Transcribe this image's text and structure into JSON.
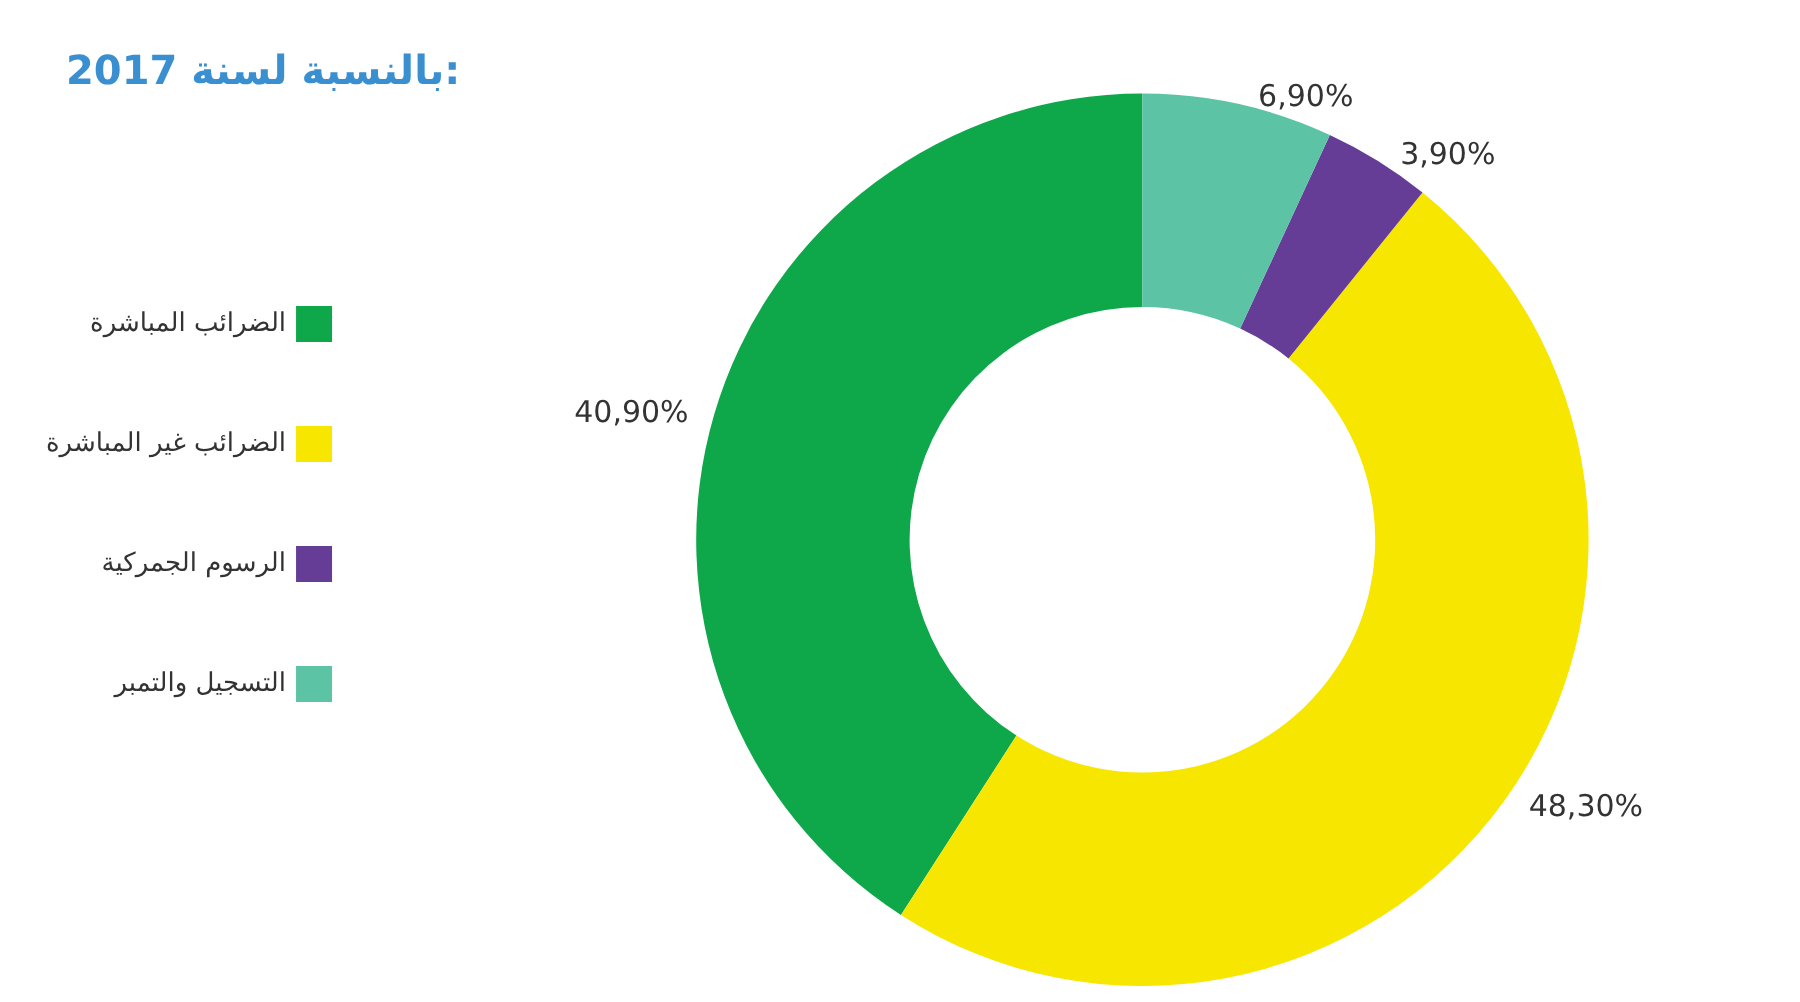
{
  "chart_data": {
    "type": "donut",
    "title": "بالنسبة لسنة 2017:",
    "categories": [
      "الضرائب المباشرة",
      "الضرائب غير المباشرة",
      "الرسوم الجمركية",
      "التسجيل والتمبر"
    ],
    "values": [
      40.9,
      48.3,
      3.9,
      6.9
    ],
    "colors": [
      "#0ea84b",
      "#f7e600",
      "#653d97",
      "#5cc3a5"
    ],
    "value_labels": [
      "40,90%",
      "48,30%",
      "3,90%",
      "6,90%"
    ],
    "legend": "left"
  }
}
